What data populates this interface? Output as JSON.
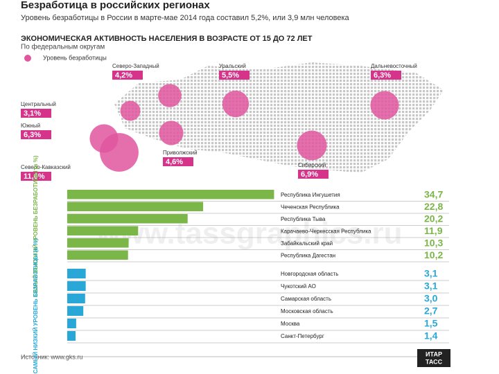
{
  "header": {
    "title": "Безработица в российских регионах",
    "subtitle": "Уровень безработицы в России в марте-мае 2014 года составил 5,2%, или 3,9 млн человека"
  },
  "chart_data": [
    {
      "type": "bubble-map",
      "title": "ЭКОНОМИЧЕСКАЯ АКТИВНОСТЬ НАСЕЛЕНИЯ В ВОЗРАСТЕ ОТ 15 ДО 72 ЛЕТ",
      "subtitle": "По федеральным округам",
      "legend": "Уровень безработицы",
      "color": "#e0569f",
      "categories": [
        "Северо-Западный",
        "Уральский",
        "Дальневосточный",
        "Центральный",
        "Южный",
        "Приволжский",
        "Северо-Кавказский",
        "Сибирский"
      ],
      "values": [
        4.2,
        5.5,
        6.3,
        3.1,
        6.3,
        4.6,
        11.6,
        6.9
      ],
      "value_labels": [
        "4,2%",
        "5,5%",
        "6,3%",
        "3,1%",
        "6,3%",
        "4,6%",
        "11,6%",
        "6,9%"
      ]
    },
    {
      "type": "bar",
      "orientation": "horizontal",
      "title": "САМЫЙ ВЫСОКИЙ УРОВЕНЬ БЕЗРАБОТИЦЫ (в %)",
      "color": "#7ab648",
      "xlim": [
        0,
        35
      ],
      "categories": [
        "Республика Ингушетия",
        "Чеченская Республика",
        "Республика Тыва",
        "Карачаево-Черкесская Республика",
        "Забайкальский край",
        "Республика Дагестан"
      ],
      "values": [
        34.7,
        22.8,
        20.2,
        11.9,
        10.3,
        10.2
      ],
      "value_labels": [
        "34,7",
        "22,8",
        "20,2",
        "11,9",
        "10,3",
        "10,2"
      ]
    },
    {
      "type": "bar",
      "orientation": "horizontal",
      "title": "САМЫЙ НИЗКИЙ УРОВЕНЬ БЕЗРАБОТИЦЫ (в %)",
      "color": "#29a8d8",
      "xlim": [
        0,
        35
      ],
      "categories": [
        "Новгородская область",
        "Чукотский АО",
        "Самарская область",
        "Московская область",
        "Москва",
        "Санкт-Петербург"
      ],
      "values": [
        3.1,
        3.1,
        3.0,
        2.7,
        1.5,
        1.4
      ],
      "value_labels": [
        "3,1",
        "3,1",
        "3,0",
        "2,7",
        "1,5",
        "1,4"
      ]
    }
  ],
  "watermark": "www.tassgraphics.ru",
  "footer": {
    "source": "Источник: www.gks.ru",
    "logo_top": "ИТАР",
    "logo_bottom": "ТАСС"
  }
}
